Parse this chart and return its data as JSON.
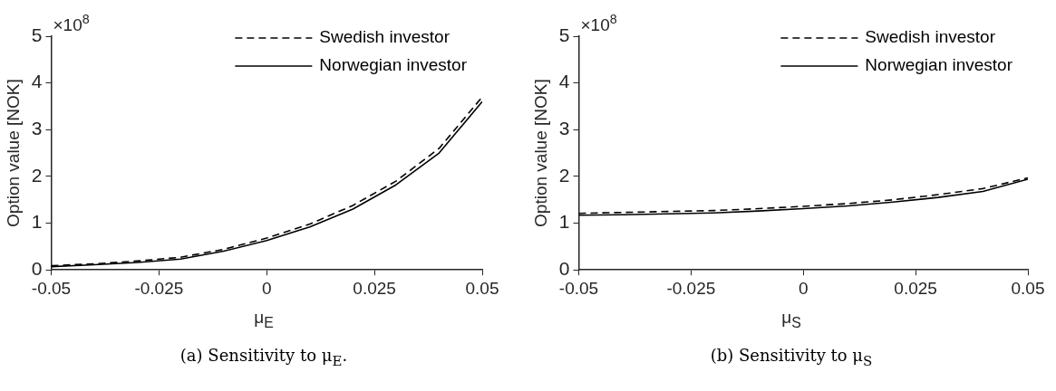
{
  "chart_data": [
    {
      "type": "line",
      "title": "(a) Sensitivity to μ$_{E}$.",
      "xlabel": "μ$_{E}$",
      "ylabel": "Option value [NOK]",
      "annotations": [
        "×10$^{8}$"
      ],
      "x": [
        -0.05,
        -0.04,
        -0.03,
        -0.02,
        -0.01,
        0,
        0.01,
        0.02,
        0.03,
        0.04,
        0.05
      ],
      "series": [
        {
          "name": "Swedish investor",
          "color": "#000000",
          "line_style": "dashed",
          "values": [
            0.09,
            0.13,
            0.19,
            0.27,
            0.44,
            0.68,
            0.98,
            1.38,
            1.9,
            2.6,
            3.7
          ]
        },
        {
          "name": "Norwegian investor",
          "color": "#000000",
          "line_style": "solid",
          "values": [
            0.07,
            0.11,
            0.16,
            0.23,
            0.4,
            0.63,
            0.92,
            1.3,
            1.82,
            2.5,
            3.6
          ]
        }
      ],
      "xlim": [
        -0.05,
        0.05
      ],
      "xticks": [
        -0.05,
        -0.025,
        0,
        0.025,
        0.05
      ],
      "ylim": [
        0,
        5
      ],
      "yticks": [
        0,
        1,
        2,
        3,
        4,
        5
      ],
      "legend": "top right",
      "marker": "none"
    },
    {
      "type": "line",
      "title": "(b) Sensitivity to μ$_{S}$",
      "xlabel": "μ$_{S}$",
      "ylabel": "Option value [NOK]",
      "annotations": [
        "×10$^{8}$"
      ],
      "x": [
        -0.05,
        -0.04,
        -0.03,
        -0.02,
        -0.01,
        0,
        0.01,
        0.02,
        0.03,
        0.04,
        0.05
      ],
      "series": [
        {
          "name": "Swedish investor",
          "color": "#000000",
          "line_style": "dashed",
          "values": [
            1.21,
            1.23,
            1.25,
            1.27,
            1.31,
            1.36,
            1.42,
            1.5,
            1.61,
            1.74,
            1.97
          ]
        },
        {
          "name": "Norwegian investor",
          "color": "#000000",
          "line_style": "solid",
          "values": [
            1.17,
            1.18,
            1.2,
            1.22,
            1.26,
            1.31,
            1.37,
            1.45,
            1.55,
            1.68,
            1.94
          ]
        }
      ],
      "xlim": [
        -0.05,
        0.05
      ],
      "xticks": [
        -0.05,
        -0.025,
        0,
        0.025,
        0.05
      ],
      "ylim": [
        0,
        5
      ],
      "yticks": [
        0,
        1,
        2,
        3,
        4,
        5
      ],
      "legend": "top right",
      "marker": "none"
    }
  ]
}
